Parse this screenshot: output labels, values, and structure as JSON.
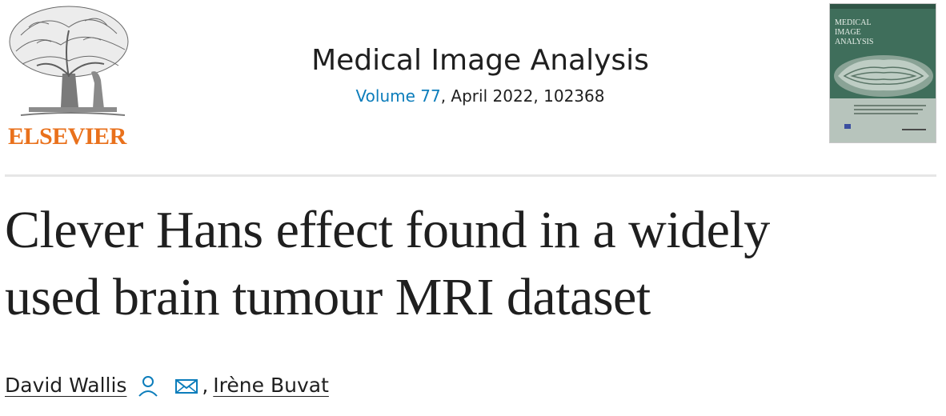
{
  "header": {
    "publisher_name": "ELSEVIER",
    "journal_title": "Medical Image Analysis",
    "volume_label": "Volume 77",
    "issue_rest": ", April 2022, 102368",
    "cover_title_lines": [
      "MEDICAL",
      "IMAGE",
      "ANALYSIS"
    ]
  },
  "article": {
    "title_line1": "Clever Hans effect found in a widely",
    "title_line2": "used brain tumour MRI dataset"
  },
  "authors": [
    {
      "name": "David Wallis"
    },
    {
      "name": "Irène Buvat"
    }
  ],
  "author_separator": ",",
  "colors": {
    "publisher_orange": "#e9711c",
    "link_blue": "#0c7dbb",
    "cover_green": "#3f6e5b"
  },
  "icons": [
    "person-icon",
    "envelope-icon"
  ]
}
